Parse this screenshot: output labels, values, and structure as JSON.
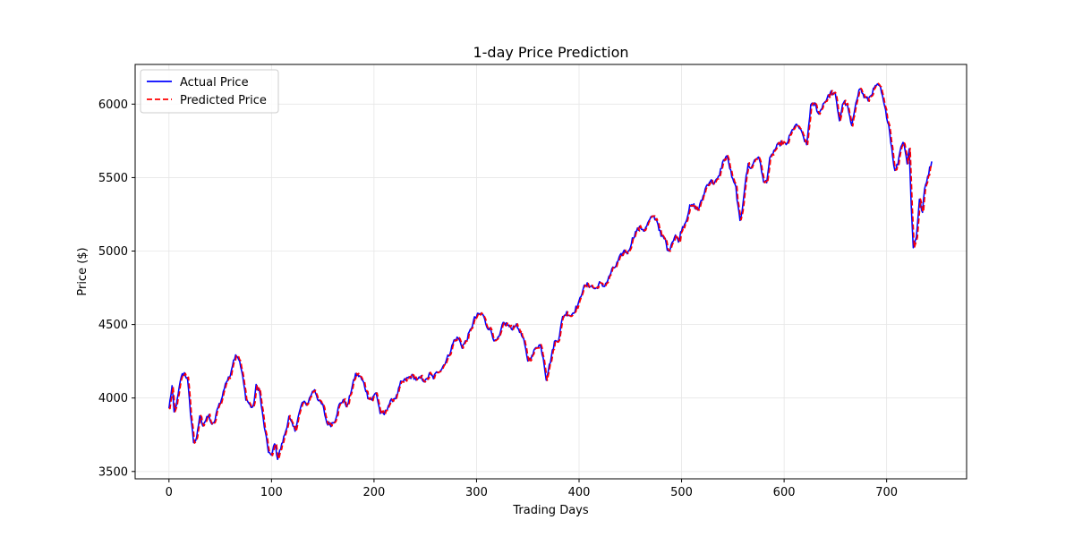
{
  "chart_data": {
    "type": "line",
    "title": "1-day Price Prediction",
    "xlabel": "Trading Days",
    "ylabel": "Price ($)",
    "xlim": [
      -33,
      778
    ],
    "ylim": [
      3450,
      6270
    ],
    "xticks": [
      0,
      100,
      200,
      300,
      400,
      500,
      600,
      700
    ],
    "yticks": [
      3500,
      4000,
      4500,
      5000,
      5500,
      6000
    ],
    "grid": true,
    "legend_position": "upper-left",
    "anchors": [
      [
        0,
        3930
      ],
      [
        3,
        4080
      ],
      [
        5,
        3900
      ],
      [
        8,
        3980
      ],
      [
        12,
        4150
      ],
      [
        15,
        4170
      ],
      [
        18,
        4130
      ],
      [
        21,
        3900
      ],
      [
        24,
        3700
      ],
      [
        27,
        3720
      ],
      [
        30,
        3880
      ],
      [
        33,
        3820
      ],
      [
        36,
        3850
      ],
      [
        39,
        3880
      ],
      [
        42,
        3810
      ],
      [
        45,
        3850
      ],
      [
        48,
        3950
      ],
      [
        51,
        3980
      ],
      [
        55,
        4100
      ],
      [
        59,
        4140
      ],
      [
        62,
        4230
      ],
      [
        65,
        4300
      ],
      [
        68,
        4270
      ],
      [
        71,
        4180
      ],
      [
        75,
        4000
      ],
      [
        79,
        3950
      ],
      [
        82,
        3930
      ],
      [
        85,
        4080
      ],
      [
        88,
        4060
      ],
      [
        91,
        3900
      ],
      [
        94,
        3760
      ],
      [
        97,
        3640
      ],
      [
        100,
        3600
      ],
      [
        103,
        3700
      ],
      [
        106,
        3590
      ],
      [
        110,
        3680
      ],
      [
        114,
        3780
      ],
      [
        117,
        3870
      ],
      [
        120,
        3820
      ],
      [
        123,
        3780
      ],
      [
        126,
        3870
      ],
      [
        130,
        3970
      ],
      [
        135,
        3960
      ],
      [
        139,
        4030
      ],
      [
        142,
        4060
      ],
      [
        146,
        3980
      ],
      [
        150,
        3950
      ],
      [
        154,
        3830
      ],
      [
        158,
        3820
      ],
      [
        162,
        3850
      ],
      [
        166,
        3950
      ],
      [
        170,
        3990
      ],
      [
        174,
        3940
      ],
      [
        178,
        4060
      ],
      [
        182,
        4160
      ],
      [
        186,
        4150
      ],
      [
        190,
        4100
      ],
      [
        194,
        4010
      ],
      [
        198,
        3990
      ],
      [
        202,
        4040
      ],
      [
        206,
        3900
      ],
      [
        210,
        3890
      ],
      [
        214,
        3950
      ],
      [
        218,
        3990
      ],
      [
        222,
        4010
      ],
      [
        226,
        4100
      ],
      [
        230,
        4120
      ],
      [
        234,
        4140
      ],
      [
        238,
        4150
      ],
      [
        242,
        4120
      ],
      [
        246,
        4140
      ],
      [
        250,
        4110
      ],
      [
        254,
        4160
      ],
      [
        258,
        4140
      ],
      [
        262,
        4180
      ],
      [
        266,
        4200
      ],
      [
        270,
        4250
      ],
      [
        274,
        4310
      ],
      [
        278,
        4390
      ],
      [
        282,
        4410
      ],
      [
        286,
        4350
      ],
      [
        290,
        4390
      ],
      [
        294,
        4460
      ],
      [
        298,
        4540
      ],
      [
        302,
        4570
      ],
      [
        306,
        4570
      ],
      [
        310,
        4490
      ],
      [
        314,
        4460
      ],
      [
        318,
        4380
      ],
      [
        322,
        4410
      ],
      [
        326,
        4510
      ],
      [
        330,
        4500
      ],
      [
        334,
        4470
      ],
      [
        338,
        4500
      ],
      [
        342,
        4460
      ],
      [
        346,
        4390
      ],
      [
        350,
        4260
      ],
      [
        354,
        4280
      ],
      [
        358,
        4350
      ],
      [
        362,
        4360
      ],
      [
        365,
        4280
      ],
      [
        368,
        4130
      ],
      [
        372,
        4250
      ],
      [
        376,
        4380
      ],
      [
        380,
        4400
      ],
      [
        384,
        4550
      ],
      [
        388,
        4580
      ],
      [
        392,
        4560
      ],
      [
        396,
        4600
      ],
      [
        400,
        4650
      ],
      [
        404,
        4750
      ],
      [
        408,
        4770
      ],
      [
        412,
        4760
      ],
      [
        416,
        4740
      ],
      [
        420,
        4780
      ],
      [
        424,
        4760
      ],
      [
        428,
        4800
      ],
      [
        432,
        4870
      ],
      [
        436,
        4900
      ],
      [
        440,
        4960
      ],
      [
        444,
        5000
      ],
      [
        448,
        4990
      ],
      [
        452,
        5080
      ],
      [
        456,
        5140
      ],
      [
        460,
        5160
      ],
      [
        464,
        5140
      ],
      [
        468,
        5200
      ],
      [
        472,
        5240
      ],
      [
        476,
        5210
      ],
      [
        480,
        5100
      ],
      [
        484,
        5080
      ],
      [
        487,
        4990
      ],
      [
        490,
        5050
      ],
      [
        494,
        5110
      ],
      [
        497,
        5060
      ],
      [
        500,
        5150
      ],
      [
        504,
        5200
      ],
      [
        508,
        5300
      ],
      [
        512,
        5310
      ],
      [
        516,
        5280
      ],
      [
        520,
        5350
      ],
      [
        524,
        5440
      ],
      [
        528,
        5480
      ],
      [
        532,
        5460
      ],
      [
        536,
        5500
      ],
      [
        540,
        5600
      ],
      [
        544,
        5650
      ],
      [
        547,
        5570
      ],
      [
        550,
        5480
      ],
      [
        553,
        5430
      ],
      [
        555,
        5300
      ],
      [
        557,
        5200
      ],
      [
        559,
        5280
      ],
      [
        562,
        5460
      ],
      [
        565,
        5590
      ],
      [
        568,
        5560
      ],
      [
        571,
        5620
      ],
      [
        574,
        5640
      ],
      [
        577,
        5600
      ],
      [
        580,
        5460
      ],
      [
        583,
        5480
      ],
      [
        586,
        5620
      ],
      [
        590,
        5680
      ],
      [
        594,
        5720
      ],
      [
        598,
        5740
      ],
      [
        602,
        5720
      ],
      [
        606,
        5790
      ],
      [
        610,
        5850
      ],
      [
        614,
        5850
      ],
      [
        618,
        5790
      ],
      [
        622,
        5720
      ],
      [
        626,
        5990
      ],
      [
        630,
        6000
      ],
      [
        634,
        5930
      ],
      [
        638,
        6000
      ],
      [
        642,
        6040
      ],
      [
        646,
        6080
      ],
      [
        650,
        6060
      ],
      [
        654,
        5890
      ],
      [
        658,
        6020
      ],
      [
        662,
        5980
      ],
      [
        666,
        5840
      ],
      [
        670,
        6020
      ],
      [
        674,
        6110
      ],
      [
        678,
        6050
      ],
      [
        682,
        6030
      ],
      [
        686,
        6080
      ],
      [
        690,
        6130
      ],
      [
        694,
        6110
      ],
      [
        698,
        5980
      ],
      [
        702,
        5860
      ],
      [
        705,
        5700
      ],
      [
        708,
        5540
      ],
      [
        711,
        5600
      ],
      [
        714,
        5720
      ],
      [
        717,
        5740
      ],
      [
        720,
        5600
      ],
      [
        722,
        5690
      ],
      [
        724,
        5320
      ],
      [
        726,
        5020
      ],
      [
        729,
        5100
      ],
      [
        732,
        5350
      ],
      [
        735,
        5260
      ],
      [
        737,
        5420
      ],
      [
        739,
        5480
      ],
      [
        742,
        5560
      ],
      [
        744,
        5610
      ]
    ],
    "series": [
      {
        "name": "Actual Price",
        "color": "#0000ff",
        "style": "solid"
      },
      {
        "name": "Predicted Price",
        "color": "#ff0000",
        "style": "dashed"
      }
    ]
  }
}
